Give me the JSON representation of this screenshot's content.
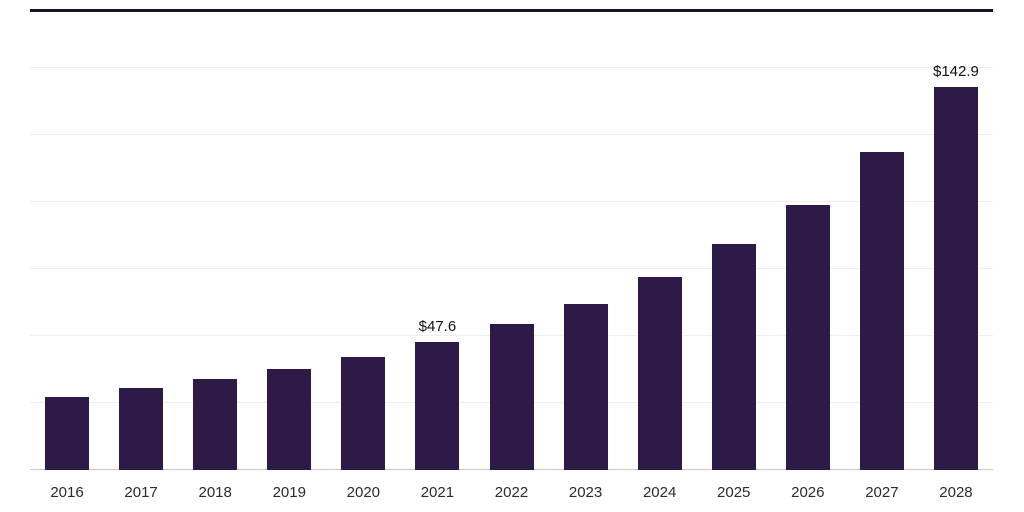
{
  "chart_data": {
    "type": "bar",
    "title": "",
    "xlabel": "",
    "ylabel": "",
    "categories": [
      "2016",
      "2017",
      "2018",
      "2019",
      "2020",
      "2021",
      "2022",
      "2023",
      "2024",
      "2025",
      "2026",
      "2027",
      "2028"
    ],
    "values": [
      27.3,
      30.7,
      34.0,
      37.8,
      42.3,
      47.6,
      54.6,
      62.1,
      72.1,
      84.4,
      99.0,
      118.7,
      142.9
    ],
    "annotations": [
      {
        "index": 5,
        "text": "$47.6"
      },
      {
        "index": 12,
        "text": "$142.9"
      }
    ],
    "ylim": [
      0,
      150
    ],
    "grid_interval": 25,
    "grid": true,
    "legend_position": "none"
  },
  "style": {
    "bar_color": "#2e1a47",
    "grid_color": "#f0eef2",
    "axis_color": "#c9c9c9",
    "top_rule_color": "#19122b",
    "value_label_color": "#111111",
    "tick_label_color": "#2b2b2b"
  }
}
